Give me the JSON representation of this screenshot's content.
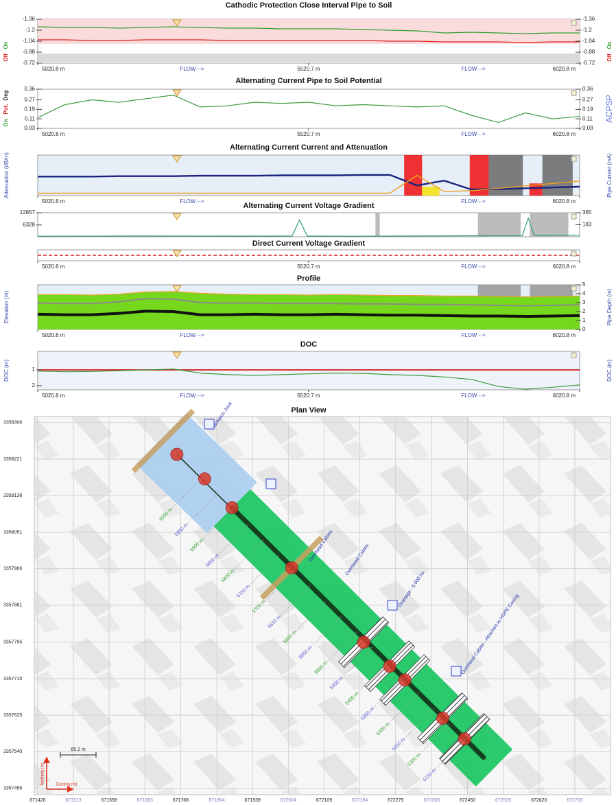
{
  "chart_data": [
    {
      "type": "line",
      "title": "Cathodic Protection Close Interval Pipe to Soil",
      "x": [
        5020.8,
        5070.8,
        5120.8,
        5170.8,
        5220.8,
        5270.8,
        5320.8,
        5370.8,
        5420.8,
        5470.8,
        5520.8,
        5570.8,
        5620.8,
        5670.8,
        5720.8,
        5770.8,
        5820.8,
        5870.8,
        5920.8,
        5970.8,
        6020.8
      ],
      "xlim": [
        5020.8,
        6020.8
      ],
      "xticks": [
        {
          "value": 5020.8,
          "label": "5020.8 m"
        },
        {
          "value": 5520.7,
          "label": "5520.7 m"
        },
        {
          "value": 6020.8,
          "label": "6020.8 m"
        }
      ],
      "ylim": [
        -0.72,
        -1.36
      ],
      "yticks": [
        -1.36,
        -1.2,
        -1.04,
        -0.88,
        -0.72
      ],
      "mirror": true,
      "ybands": [
        {
          "y": [
            -1.36,
            -1.0
          ],
          "color": "#fadcdc"
        },
        {
          "y": [
            -0.86,
            -0.74
          ],
          "color": "#dadada"
        }
      ],
      "flow": [
        "FLOW -->",
        "FLOW -->"
      ],
      "series": [
        {
          "name": "On",
          "color": "#2e9e2e",
          "values": [
            -1.25,
            -1.24,
            -1.24,
            -1.23,
            -1.24,
            -1.25,
            -1.24,
            -1.23,
            -1.23,
            -1.22,
            -1.22,
            -1.22,
            -1.21,
            -1.2,
            -1.19,
            -1.16,
            -1.17,
            -1.16,
            -1.15,
            -1.16,
            -1.16
          ]
        },
        {
          "name": "Off",
          "color": "#e01b1b",
          "values": [
            -1.06,
            -1.06,
            -1.05,
            -1.05,
            -1.06,
            -1.06,
            -1.06,
            -1.05,
            -1.05,
            -1.05,
            -1.05,
            -1.05,
            -1.05,
            -1.04,
            -1.04,
            -1.03,
            -1.03,
            -1.03,
            -1.02,
            -1.03,
            -1.03
          ]
        }
      ]
    },
    {
      "type": "line",
      "title": "Alternating Current Pipe to Soil Potential",
      "x": [
        5020.8,
        5070.8,
        5120.8,
        5170.8,
        5220.8,
        5270.8,
        5320.8,
        5370.8,
        5420.8,
        5470.8,
        5520.8,
        5570.8,
        5620.8,
        5670.8,
        5720.8,
        5770.8,
        5820.8,
        5870.8,
        5920.8,
        5970.8,
        6020.8
      ],
      "xlim": [
        5020.8,
        6020.8
      ],
      "xticks": [
        {
          "value": 5020.8,
          "label": "5020.8 m"
        },
        {
          "value": 5520.7,
          "label": "5520.7 m"
        },
        {
          "value": 6020.8,
          "label": "6020.8 m"
        }
      ],
      "ylim": [
        0.03,
        0.36
      ],
      "yticks": [
        0.36,
        0.27,
        0.19,
        0.11,
        0.03
      ],
      "mirror": true,
      "ylabel_parts": [
        {
          "text": "On",
          "color": "#2e9e2e"
        },
        {
          "text": "Pot.",
          "color": "#e01b1b"
        },
        {
          "text": "Deg",
          "color": "#222222"
        }
      ],
      "y2label": "ACPSP",
      "flow": [
        "FLOW -->"
      ],
      "series": [
        {
          "color": "#3a9a3a",
          "values": [
            0.12,
            0.23,
            0.27,
            0.25,
            0.28,
            0.31,
            0.21,
            0.22,
            0.25,
            0.24,
            0.25,
            0.22,
            0.23,
            0.22,
            0.21,
            0.22,
            0.14,
            0.08,
            0.16,
            0.11,
            0.13
          ]
        }
      ]
    },
    {
      "type": "line",
      "title": "Alternating Current Current and Attenuation",
      "x": [
        5020.8,
        5070.8,
        5120.8,
        5170.8,
        5220.8,
        5270.8,
        5320.8,
        5370.8,
        5420.8,
        5470.8,
        5520.8,
        5570.8,
        5620.8,
        5670.8,
        5720.8,
        5770.8,
        5820.8,
        5870.8,
        5920.8,
        5970.8,
        6020.8
      ],
      "xlim": [
        5020.8,
        6020.8
      ],
      "xticks": [
        {
          "value": 5020.8,
          "label": "5020.8 m"
        },
        {
          "value": 6020.8,
          "label": "6020.8 m"
        }
      ],
      "ylim": [
        0,
        1
      ],
      "background": "#e6eef8",
      "ylabel": "Attenuation (dB/m)",
      "y2label": "Pipe Current (mA)",
      "xbands": [
        {
          "x": [
            5697,
            5730
          ],
          "color": "#ee1c1c"
        },
        {
          "x": [
            5730,
            5762
          ],
          "y": [
            0,
            0.22
          ],
          "color": "#f5e21a"
        },
        {
          "x": [
            5818,
            5853
          ],
          "color": "#ee1c1c"
        },
        {
          "x": [
            5853,
            5916
          ],
          "color": "#6f6f6f"
        },
        {
          "x": [
            5928,
            5952
          ],
          "y": [
            0,
            0.3
          ],
          "color": "#ee1c1c"
        },
        {
          "x": [
            5952,
            6008
          ],
          "color": "#6f6f6f"
        }
      ],
      "flow": [
        "FLOW -->",
        "FLOW -->"
      ],
      "series": [
        {
          "color": "#1a237e",
          "linewidth": 2.4,
          "values": [
            0.47,
            0.47,
            0.47,
            0.48,
            0.48,
            0.48,
            0.49,
            0.49,
            0.49,
            0.5,
            0.5,
            0.5,
            0.51,
            0.51,
            0.25,
            0.37,
            0.15,
            0.16,
            0.18,
            0.2,
            0.22
          ]
        },
        {
          "color": "#f0a020",
          "linewidth": 1.4,
          "values": [
            0.06,
            0.06,
            0.06,
            0.06,
            0.06,
            0.06,
            0.06,
            0.06,
            0.06,
            0.06,
            0.06,
            0.06,
            0.06,
            0.06,
            0.5,
            0.1,
            0.12,
            0.18,
            0.24,
            0.3,
            0.36
          ]
        }
      ]
    },
    {
      "type": "line",
      "title": "Alternating Current Voltage Gradient",
      "x": [
        5020.8,
        5200,
        5400,
        5490,
        5504,
        5518,
        5600,
        5800,
        5915,
        5926,
        5937,
        6020.8
      ],
      "xlim": [
        5020.8,
        6020.8
      ],
      "ylim": [
        0,
        12857
      ],
      "yticks": [
        12857,
        6328
      ],
      "y2lim": [
        0,
        365
      ],
      "y2ticks": [
        365,
        183
      ],
      "xbands": [
        {
          "x": [
            5644,
            5652
          ],
          "color": "#b5b5b5"
        },
        {
          "x": [
            5833,
            5912
          ],
          "color": "#b5b5b5"
        },
        {
          "x": [
            5929,
            6000
          ],
          "color": "#b5b5b5"
        }
      ],
      "series": [
        {
          "color": "#2e9e6e",
          "values": [
            300,
            400,
            350,
            400,
            9000,
            400,
            300,
            500,
            600,
            10000,
            700,
            800
          ]
        }
      ]
    },
    {
      "type": "line",
      "title": "Direct Current Voltage Gradient",
      "x": [
        5020.8,
        6020.8
      ],
      "xlim": [
        5020.8,
        6020.8
      ],
      "xticks": [
        {
          "value": 5020.8,
          "label": "5020.8 m"
        },
        {
          "value": 5520.7,
          "label": "5520.7 m"
        },
        {
          "value": 6020.8,
          "label": "6020.8 m"
        }
      ],
      "ylim": [
        -1,
        1
      ],
      "flow": [
        "FLOW -->"
      ],
      "series": [
        {
          "color": "#d02020",
          "dash": true,
          "linewidth": 1.6,
          "values": [
            0,
            0
          ]
        }
      ]
    },
    {
      "type": "line",
      "title": "Profile",
      "x": [
        5020.8,
        5070.8,
        5120.8,
        5170.8,
        5220.8,
        5270.8,
        5320.8,
        5370.8,
        5420.8,
        5470.8,
        5520.8,
        5570.8,
        5620.8,
        5670.8,
        5720.8,
        5770.8,
        5820.8,
        5870.8,
        5920.8,
        5970.8,
        6020.8
      ],
      "xlim": [
        5020.8,
        6020.8
      ],
      "xticks": [
        {
          "value": 5020.8,
          "label": "5020.8 m"
        },
        {
          "value": 6020.8,
          "label": "6020.8 m"
        }
      ],
      "ylim": [
        0,
        10
      ],
      "y2lim": [
        0,
        5
      ],
      "y2ticks": [
        0,
        1,
        2,
        3,
        4,
        5
      ],
      "background": "#e6eef8",
      "ylabel": "Elevation (m)",
      "y2label": "Pipe Depth (m)",
      "xbands": [
        {
          "x": [
            5833,
            5912
          ],
          "color": "#9a9a9a"
        },
        {
          "x": [
            5929,
            6008
          ],
          "color": "#9a9a9a"
        }
      ],
      "flow": [
        "FLOW -->",
        "FLOW -->"
      ],
      "series": [
        {
          "color": "#f0a030",
          "fill": "#76d81c",
          "values": [
            7.8,
            7.8,
            7.7,
            7.9,
            8.4,
            8.5,
            8.1,
            7.9,
            7.8,
            7.8,
            7.7,
            7.8,
            7.7,
            7.6,
            7.6,
            7.5,
            7.5,
            7.4,
            7.3,
            7.4,
            7.5
          ]
        },
        {
          "color": "#8a8a8a",
          "linewidth": 2,
          "values": [
            5.9,
            5.8,
            5.8,
            6.2,
            6.9,
            6.8,
            6.0,
            5.9,
            5.9,
            5.8,
            5.8,
            5.8,
            5.7,
            5.7,
            5.6,
            5.6,
            5.5,
            5.4,
            5.3,
            5.4,
            5.5
          ]
        },
        {
          "color": "#111111",
          "linewidth": 4,
          "values": [
            3.4,
            3.3,
            3.3,
            3.6,
            4.1,
            4.0,
            3.3,
            3.3,
            3.4,
            3.3,
            3.3,
            3.4,
            3.3,
            3.2,
            3.2,
            3.1,
            3.0,
            3.0,
            2.9,
            3.0,
            3.1
          ]
        }
      ]
    },
    {
      "type": "line",
      "title": "DOC",
      "x": [
        5020.8,
        5070.8,
        5120.8,
        5170.8,
        5220.8,
        5270.8,
        5320.8,
        5370.8,
        5420.8,
        5470.8,
        5520.8,
        5570.8,
        5620.8,
        5670.8,
        5720.8,
        5770.8,
        5820.8,
        5870.8,
        5920.8,
        5970.8,
        6020.8
      ],
      "xlim": [
        5020.8,
        6020.8
      ],
      "xticks": [
        {
          "value": 5020.8,
          "label": "5020.8 m"
        },
        {
          "value": 5520.7,
          "label": "5520.7 m"
        },
        {
          "value": 6020.8,
          "label": "6020.8 m"
        }
      ],
      "ylim": [
        2.26,
        -0.17
      ],
      "yticks": [
        1,
        2
      ],
      "background": "#eef3fa",
      "ylabel": "DOC (m)",
      "y2label": "DOC (m)",
      "flow": [
        "FLOW -->",
        "FLOW -->"
      ],
      "series": [
        {
          "color": "#d01818",
          "linewidth": 1.8,
          "x": [
            5020.8,
            6020.8
          ],
          "values": [
            1,
            1
          ]
        },
        {
          "color": "#3a9a3a",
          "values": [
            1.08,
            1.12,
            1.1,
            1.05,
            1.0,
            0.95,
            1.2,
            1.3,
            1.35,
            1.3,
            1.25,
            1.2,
            1.22,
            1.3,
            1.35,
            1.45,
            1.6,
            2.05,
            2.22,
            2.1,
            1.95
          ]
        }
      ]
    },
    {
      "type": "map",
      "title": "Plan View",
      "xlabel": "Easting (m)",
      "ylabel": "Northing (m)",
      "scale": "85.2 m",
      "xlim": [
        671420,
        672790
      ],
      "ylim": [
        3357440,
        3358320
      ],
      "xticks": [
        671428,
        671513,
        671598,
        671683,
        671768,
        671854,
        671939,
        672024,
        672109,
        672194,
        672279,
        672365,
        672450,
        672535,
        672620,
        672705
      ],
      "yticks": [
        3358306,
        3358221,
        3358136,
        3358051,
        3357966,
        3357881,
        3357795,
        3357710,
        3357625,
        3357540,
        3357455
      ],
      "pipeline": {
        "color": "#1a3a22",
        "x": [
          671759,
          672488
        ],
        "y": [
          3358232,
          3357527
        ]
      },
      "welds": {
        "color": "#d9382b",
        "x": [
          671759,
          671825,
          671890,
          672032,
          672203,
          672265,
          672301,
          672391,
          672443
        ],
        "y": [
          3358232,
          3358175,
          3358108,
          3357968,
          3357795,
          3357739,
          3357707,
          3357618,
          3357570
        ]
      },
      "stations": [
        "6000 m",
        "5950 m",
        "5900 m",
        "5850 m",
        "5800 m",
        "5750 m",
        "5700 m",
        "5650 m",
        "5600 m",
        "5550 m",
        "5500 m",
        "5450 m",
        "5400 m",
        "5350 m",
        "5300 m",
        "5250 m",
        "5200 m",
        "5150 m"
      ],
      "annotations": [
        "Isolation Joint",
        "Overhead Cables",
        "Overhead Cables",
        "Drainage - 5,000 ha",
        "Overhead Cables - Attached to HDPE Casing"
      ]
    }
  ]
}
